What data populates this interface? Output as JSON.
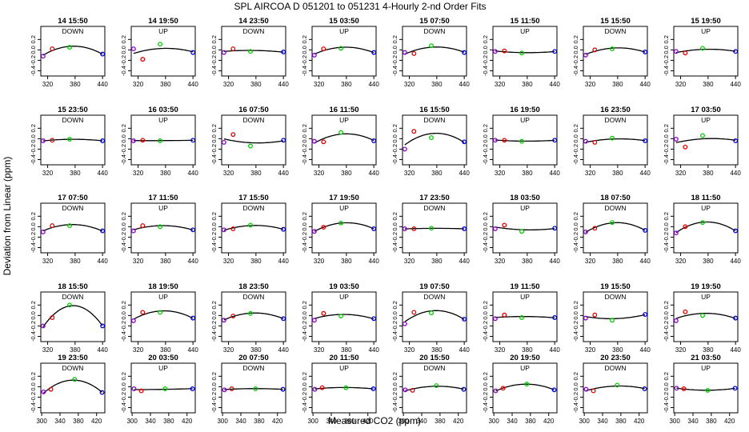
{
  "figure": {
    "title": "SPL   AIRCOA D   051201 to 051231   4-Hourly 2-nd Order Fits",
    "xlabel": "Measured CO2 (ppm)",
    "ylabel": "Deviation from Linear (ppm)"
  },
  "chart_data": {
    "type": "scatter",
    "grid_rows": 5,
    "grid_cols": 8,
    "colors": {
      "pt1": "#8800cc",
      "pt2": "#e00000",
      "pt3": "#00cc00",
      "pt4": "#0000cc",
      "curve": "#000000"
    },
    "ylim": [
      -0.5,
      0.45
    ],
    "yticks": [
      -0.4,
      -0.2,
      0.0,
      0.2
    ],
    "yticklabels": [
      "-0.4",
      "-0.2",
      "0.0",
      "0.2"
    ],
    "row_axes": [
      {
        "xlim": [
          305,
          445
        ],
        "xticks": [
          320,
          380,
          440
        ]
      },
      {
        "xlim": [
          305,
          445
        ],
        "xticks": [
          320,
          380,
          440
        ]
      },
      {
        "xlim": [
          305,
          445
        ],
        "xticks": [
          320,
          380,
          440
        ]
      },
      {
        "xlim": [
          305,
          445
        ],
        "xticks": [
          320,
          380,
          440
        ]
      },
      {
        "xlim": [
          298,
          438
        ],
        "xticks": [
          300,
          340,
          380,
          420
        ]
      }
    ],
    "panels": [
      {
        "title": "14 15:50",
        "tag": "DOWN",
        "x": [
          310,
          330,
          368,
          440
        ],
        "y": [
          -0.12,
          0.02,
          0.05,
          -0.08
        ]
      },
      {
        "title": "14 19:50",
        "tag": "UP",
        "x": [
          310,
          330,
          368,
          440
        ],
        "y": [
          0.02,
          -0.18,
          0.11,
          -0.05
        ]
      },
      {
        "title": "14 23:50",
        "tag": "DOWN",
        "x": [
          310,
          330,
          368,
          440
        ],
        "y": [
          -0.05,
          0.02,
          -0.03,
          -0.04
        ]
      },
      {
        "title": "15 03:50",
        "tag": "UP",
        "x": [
          310,
          330,
          368,
          440
        ],
        "y": [
          -0.1,
          0.02,
          0.03,
          -0.05
        ]
      },
      {
        "title": "15 07:50",
        "tag": "DOWN",
        "x": [
          310,
          330,
          368,
          440
        ],
        "y": [
          -0.05,
          -0.07,
          0.08,
          -0.05
        ]
      },
      {
        "title": "15 11:50",
        "tag": "UP",
        "x": [
          310,
          330,
          368,
          440
        ],
        "y": [
          -0.03,
          -0.02,
          -0.06,
          -0.03
        ]
      },
      {
        "title": "15 15:50",
        "tag": "DOWN",
        "x": [
          310,
          330,
          368,
          440
        ],
        "y": [
          -0.1,
          0.0,
          0.02,
          -0.04
        ]
      },
      {
        "title": "15 19:50",
        "tag": "UP",
        "x": [
          310,
          330,
          368,
          440
        ],
        "y": [
          -0.03,
          -0.06,
          0.03,
          -0.03
        ]
      },
      {
        "title": "15 23:50",
        "tag": "DOWN",
        "x": [
          310,
          330,
          368,
          440
        ],
        "y": [
          -0.04,
          -0.03,
          -0.01,
          -0.04
        ]
      },
      {
        "title": "16 03:50",
        "tag": "UP",
        "x": [
          310,
          330,
          368,
          440
        ],
        "y": [
          -0.04,
          -0.03,
          -0.04,
          -0.03
        ]
      },
      {
        "title": "16 07:50",
        "tag": "DOWN",
        "x": [
          310,
          330,
          368,
          440
        ],
        "y": [
          -0.07,
          0.08,
          -0.14,
          -0.03
        ]
      },
      {
        "title": "16 11:50",
        "tag": "UP",
        "x": [
          310,
          330,
          368,
          440
        ],
        "y": [
          -0.05,
          -0.06,
          0.12,
          -0.04
        ]
      },
      {
        "title": "16 15:50",
        "tag": "DOWN",
        "x": [
          310,
          330,
          368,
          440
        ],
        "y": [
          -0.2,
          0.14,
          0.02,
          -0.06
        ]
      },
      {
        "title": "16 19:50",
        "tag": "UP",
        "x": [
          310,
          330,
          368,
          440
        ],
        "y": [
          -0.03,
          -0.03,
          -0.05,
          -0.03
        ]
      },
      {
        "title": "16 23:50",
        "tag": "DOWN",
        "x": [
          310,
          330,
          368,
          440
        ],
        "y": [
          -0.05,
          -0.07,
          0.01,
          -0.04
        ]
      },
      {
        "title": "17 03:50",
        "tag": "UP",
        "x": [
          310,
          330,
          368,
          440
        ],
        "y": [
          -0.01,
          -0.16,
          0.06,
          -0.04
        ]
      },
      {
        "title": "17 07:50",
        "tag": "DOWN",
        "x": [
          310,
          330,
          368,
          440
        ],
        "y": [
          -0.1,
          0.02,
          0.02,
          -0.08
        ]
      },
      {
        "title": "17 11:50",
        "tag": "UP",
        "x": [
          310,
          330,
          368,
          440
        ],
        "y": [
          -0.08,
          0.02,
          0.0,
          -0.06
        ]
      },
      {
        "title": "17 15:50",
        "tag": "DOWN",
        "x": [
          310,
          330,
          368,
          440
        ],
        "y": [
          -0.06,
          -0.04,
          0.03,
          -0.05
        ]
      },
      {
        "title": "17 19:50",
        "tag": "UP",
        "x": [
          310,
          330,
          368,
          440
        ],
        "y": [
          -0.09,
          -0.01,
          0.07,
          -0.04
        ]
      },
      {
        "title": "17 23:50",
        "tag": "DOWN",
        "x": [
          310,
          330,
          368,
          440
        ],
        "y": [
          -0.04,
          -0.04,
          -0.03,
          -0.04
        ]
      },
      {
        "title": "18 03:50",
        "tag": "UP",
        "x": [
          310,
          330,
          368,
          440
        ],
        "y": [
          -0.04,
          0.03,
          -0.09,
          -0.03
        ]
      },
      {
        "title": "18 07:50",
        "tag": "DOWN",
        "x": [
          310,
          330,
          368,
          440
        ],
        "y": [
          -0.1,
          -0.03,
          0.08,
          -0.07
        ]
      },
      {
        "title": "18 11:50",
        "tag": "UP",
        "x": [
          310,
          330,
          368,
          440
        ],
        "y": [
          -0.12,
          0.0,
          0.08,
          -0.08
        ]
      },
      {
        "title": "18 15:50",
        "tag": "DOWN",
        "x": [
          310,
          330,
          368,
          440
        ],
        "y": [
          -0.2,
          -0.04,
          0.2,
          -0.2
        ]
      },
      {
        "title": "18 19:50",
        "tag": "UP",
        "x": [
          310,
          330,
          368,
          440
        ],
        "y": [
          -0.1,
          0.06,
          0.06,
          -0.05
        ]
      },
      {
        "title": "18 23:50",
        "tag": "DOWN",
        "x": [
          310,
          330,
          368,
          440
        ],
        "y": [
          -0.09,
          -0.01,
          0.04,
          -0.06
        ]
      },
      {
        "title": "19 03:50",
        "tag": "UP",
        "x": [
          310,
          330,
          368,
          440
        ],
        "y": [
          -0.09,
          0.04,
          -0.01,
          -0.06
        ]
      },
      {
        "title": "19 07:50",
        "tag": "DOWN",
        "x": [
          310,
          330,
          368,
          440
        ],
        "y": [
          -0.16,
          0.06,
          0.05,
          -0.07
        ]
      },
      {
        "title": "19 11:50",
        "tag": "UP",
        "x": [
          310,
          330,
          368,
          440
        ],
        "y": [
          -0.06,
          0.01,
          -0.04,
          -0.04
        ]
      },
      {
        "title": "19 15:50",
        "tag": "DOWN",
        "x": [
          310,
          330,
          368,
          440
        ],
        "y": [
          -0.05,
          0.01,
          -0.09,
          0.02
        ]
      },
      {
        "title": "19 19:50",
        "tag": "UP",
        "x": [
          310,
          330,
          368,
          440
        ],
        "y": [
          -0.1,
          0.07,
          0.0,
          -0.05
        ]
      },
      {
        "title": "19 23:50",
        "tag": "DOWN",
        "x": [
          304,
          320,
          372,
          432
        ],
        "y": [
          -0.1,
          -0.05,
          0.14,
          -0.11
        ]
      },
      {
        "title": "20 03:50",
        "tag": "UP",
        "x": [
          304,
          320,
          372,
          432
        ],
        "y": [
          -0.04,
          -0.08,
          -0.04,
          -0.04
        ]
      },
      {
        "title": "20 07:50",
        "tag": "DOWN",
        "x": [
          304,
          320,
          372,
          432
        ],
        "y": [
          -0.06,
          -0.04,
          -0.04,
          -0.05
        ]
      },
      {
        "title": "20 11:50",
        "tag": "UP",
        "x": [
          304,
          320,
          372,
          432
        ],
        "y": [
          -0.05,
          -0.02,
          -0.02,
          -0.04
        ]
      },
      {
        "title": "20 15:50",
        "tag": "DOWN",
        "x": [
          304,
          320,
          372,
          432
        ],
        "y": [
          -0.06,
          -0.07,
          0.02,
          -0.05
        ]
      },
      {
        "title": "20 19:50",
        "tag": "UP",
        "x": [
          304,
          320,
          372,
          432
        ],
        "y": [
          -0.08,
          -0.03,
          0.05,
          -0.06
        ]
      },
      {
        "title": "20 23:50",
        "tag": "DOWN",
        "x": [
          304,
          320,
          372,
          432
        ],
        "y": [
          -0.05,
          -0.08,
          0.03,
          -0.04
        ]
      },
      {
        "title": "21 03:50",
        "tag": "UP",
        "x": [
          304,
          320,
          372,
          432
        ],
        "y": [
          -0.03,
          -0.04,
          -0.07,
          -0.03
        ]
      }
    ]
  }
}
